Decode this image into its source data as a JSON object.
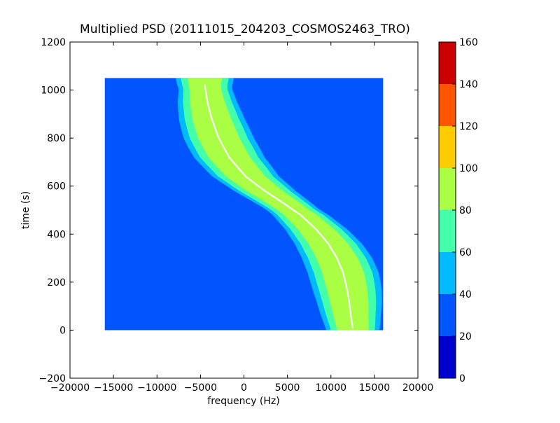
{
  "chart_data": {
    "type": "heatmap",
    "title": "Multiplied PSD (20111015_204203_COSMOS2463_TRO)",
    "xlabel": "frequency (Hz)",
    "ylabel": "time (s)",
    "xlim": [
      -20000,
      20000
    ],
    "ylim": [
      -200,
      1200
    ],
    "x_ticks": [
      -20000,
      -15000,
      -10000,
      -5000,
      0,
      5000,
      10000,
      15000,
      20000
    ],
    "x_tick_labels": [
      "−20000",
      "−15000",
      "−10000",
      "−5000",
      "0",
      "5000",
      "10000",
      "15000",
      "20000"
    ],
    "y_ticks": [
      -200,
      0,
      200,
      400,
      600,
      800,
      1000,
      1200
    ],
    "y_tick_labels": [
      "−200",
      "0",
      "200",
      "400",
      "600",
      "800",
      "1000",
      "1200"
    ],
    "data_extent": {
      "freq": [
        -16000,
        16000
      ],
      "time": [
        0,
        1050
      ]
    },
    "colorbar": {
      "levels": [
        0,
        20,
        40,
        60,
        80,
        100,
        120,
        140,
        160
      ],
      "tick_labels": [
        "0",
        "20",
        "40",
        "60",
        "80",
        "100",
        "120",
        "140",
        "160"
      ],
      "colors": [
        "#0000cc",
        "#0055ff",
        "#00bbff",
        "#44ffaa",
        "#aaff44",
        "#ffcc00",
        "#ff5500",
        "#cc0000"
      ]
    },
    "background_level_color": "#0055ff",
    "signal_trace": {
      "time": [
        1020,
        950,
        880,
        800,
        720,
        640,
        580,
        530,
        480,
        420,
        360,
        300,
        240,
        180,
        120,
        60,
        10
      ],
      "freq": [
        -4500,
        -4200,
        -3700,
        -2900,
        -1700,
        200,
        2400,
        4500,
        6500,
        8300,
        9700,
        10700,
        11400,
        11800,
        12100,
        12300,
        12500
      ]
    }
  }
}
